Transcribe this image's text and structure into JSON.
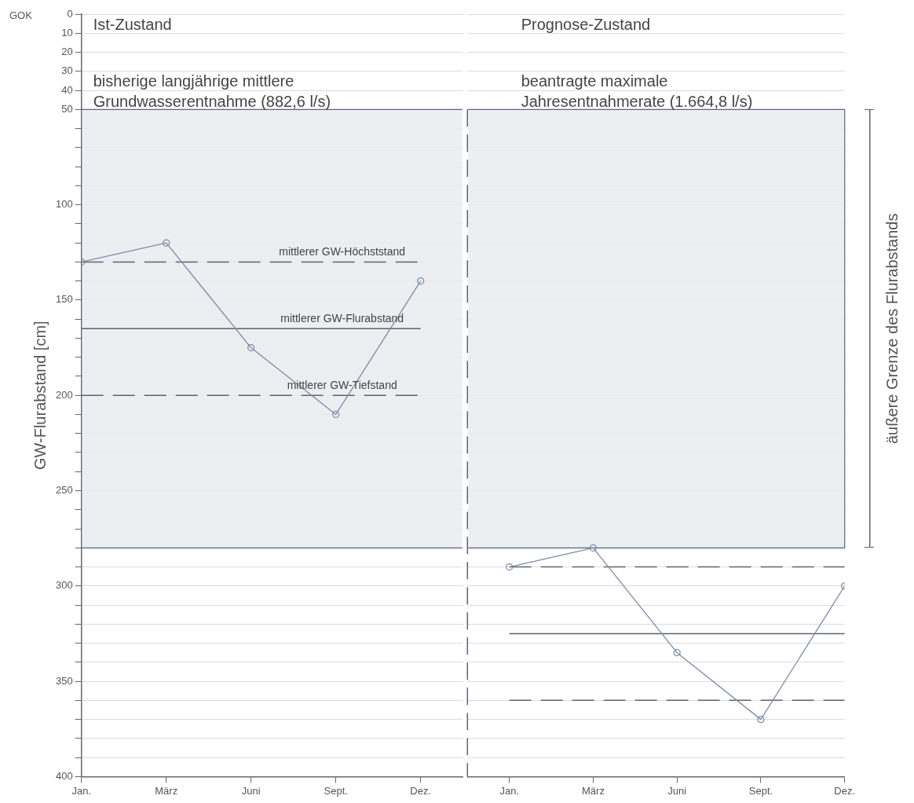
{
  "chart_data": [
    {
      "type": "line",
      "ylabel": "GW-Flurabstand [cm]",
      "categories": [
        "Jan.",
        "März",
        "Juni",
        "Sept.",
        "Dez."
      ],
      "series": [
        {
          "color": "#7d8ca6",
          "marker": "circle",
          "values": [
            130,
            120,
            175,
            210,
            140
          ]
        },
        {
          "color": "#5f6368",
          "marker": "none",
          "line_style": "dashed",
          "values": [
            130,
            130,
            130,
            130,
            130
          ]
        },
        {
          "color": "#5f6368",
          "marker": "none",
          "line_style": "solid",
          "values": [
            165,
            165,
            165,
            165,
            165
          ]
        },
        {
          "color": "#5f6368",
          "marker": "none",
          "line_style": "dashed",
          "values": [
            200,
            200,
            200,
            200,
            200
          ]
        }
      ],
      "ylim": [
        400,
        0
      ],
      "yticks": [
        0,
        10,
        20,
        30,
        40,
        50,
        {
          "value": 60,
          "label": null
        },
        {
          "value": 70,
          "label": null
        },
        {
          "value": 80,
          "label": null
        },
        {
          "value": 90,
          "label": null
        },
        100,
        {
          "value": 110,
          "label": null
        },
        {
          "value": 120,
          "label": null
        },
        {
          "value": 130,
          "label": null
        },
        {
          "value": 140,
          "label": null
        },
        150,
        {
          "value": 160,
          "label": null
        },
        {
          "value": 170,
          "label": null
        },
        {
          "value": 180,
          "label": null
        },
        {
          "value": 190,
          "label": null
        },
        200,
        {
          "value": 210,
          "label": null
        },
        {
          "value": 220,
          "label": null
        },
        {
          "value": 230,
          "label": null
        },
        {
          "value": 240,
          "label": null
        },
        250,
        {
          "value": 260,
          "label": null
        },
        {
          "value": 270,
          "label": null
        },
        {
          "value": 280,
          "label": null
        },
        {
          "value": 290,
          "label": null
        },
        300,
        {
          "value": 310,
          "label": null
        },
        {
          "value": 320,
          "label": null
        },
        {
          "value": 330,
          "label": null
        },
        {
          "value": 340,
          "label": null
        },
        350,
        {
          "value": 360,
          "label": null
        },
        {
          "value": 370,
          "label": null
        },
        {
          "value": 380,
          "label": null
        },
        {
          "value": 390,
          "label": null
        },
        400
      ],
      "bands": [
        {
          "axis": "y",
          "from": 50,
          "to": 280,
          "color": "#e9ebef"
        }
      ],
      "annotations": [
        "Ist-Zustand",
        "bisherige langjährige mittlere",
        "Grundwasserentnahme (882,6 l/s)",
        "GOK",
        {
          "text": "mittlerer GW-Höchststand",
          "x": "Sept.",
          "y": 130
        },
        {
          "text": "mittlerer GW-Flurabstand",
          "x": "Sept.",
          "y": 165
        },
        {
          "text": "mittlerer GW-Tiefstand",
          "x": "Sept.",
          "y": 200
        }
      ],
      "grid": "y",
      "legend": false
    },
    {
      "type": "line",
      "categories": [
        "Jan.",
        "März",
        "Juni",
        "Sept.",
        "Dez."
      ],
      "series": [
        {
          "color": "#7d8ca6",
          "marker": "circle",
          "values": [
            290,
            280,
            335,
            370,
            300
          ]
        },
        {
          "color": "#5f6368",
          "marker": "none",
          "line_style": "dashed",
          "values": [
            290,
            290,
            290,
            290,
            290
          ]
        },
        {
          "color": "#5f6368",
          "marker": "none",
          "line_style": "solid",
          "values": [
            325,
            325,
            325,
            325,
            325
          ]
        },
        {
          "color": "#5f6368",
          "marker": "none",
          "line_style": "dashed",
          "values": [
            360,
            360,
            360,
            360,
            360
          ]
        }
      ],
      "ylim": [
        400,
        0
      ],
      "yticks": [
        0,
        10,
        20,
        30,
        40,
        50,
        {
          "value": 60,
          "label": null
        },
        {
          "value": 70,
          "label": null
        },
        {
          "value": 80,
          "label": null
        },
        {
          "value": 90,
          "label": null
        },
        100,
        {
          "value": 110,
          "label": null
        },
        {
          "value": 120,
          "label": null
        },
        {
          "value": 130,
          "label": null
        },
        {
          "value": 140,
          "label": null
        },
        150,
        {
          "value": 160,
          "label": null
        },
        {
          "value": 170,
          "label": null
        },
        {
          "value": 180,
          "label": null
        },
        {
          "value": 190,
          "label": null
        },
        200,
        {
          "value": 210,
          "label": null
        },
        {
          "value": 220,
          "label": null
        },
        {
          "value": 230,
          "label": null
        },
        {
          "value": 240,
          "label": null
        },
        250,
        {
          "value": 260,
          "label": null
        },
        {
          "value": 270,
          "label": null
        },
        {
          "value": 280,
          "label": null
        },
        {
          "value": 290,
          "label": null
        },
        300,
        {
          "value": 310,
          "label": null
        },
        {
          "value": 320,
          "label": null
        },
        {
          "value": 330,
          "label": null
        },
        {
          "value": 340,
          "label": null
        },
        350,
        {
          "value": 360,
          "label": null
        },
        {
          "value": 370,
          "label": null
        },
        {
          "value": 380,
          "label": null
        },
        {
          "value": 390,
          "label": null
        },
        400
      ],
      "bands": [
        {
          "axis": "y",
          "from": 50,
          "to": 280,
          "label": "äußere Grenze des Flurabstands",
          "color": "#e9ebef"
        }
      ],
      "annotations": [
        "Prognose-Zustand",
        "beantragte maximale",
        "Jahresentnahmerate (1.664,8 l/s)"
      ],
      "tick_labels": "x",
      "grid": "y",
      "legend": false
    }
  ]
}
